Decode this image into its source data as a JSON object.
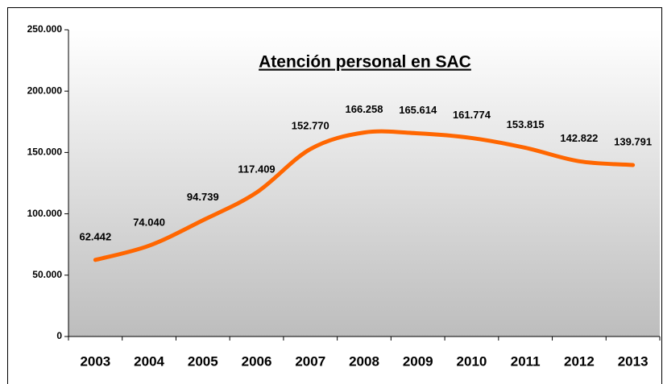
{
  "chart_data": {
    "type": "line",
    "title": "Atención personal en SAC",
    "categories": [
      "2003",
      "2004",
      "2005",
      "2006",
      "2007",
      "2008",
      "2009",
      "2010",
      "2011",
      "2012",
      "2013"
    ],
    "values": [
      62442,
      74040,
      94739,
      117409,
      152770,
      166258,
      165614,
      161774,
      153815,
      142822,
      139791
    ],
    "value_labels": [
      "62.442",
      "74.040",
      "94.739",
      "117.409",
      "152.770",
      "166.258",
      "165.614",
      "161.774",
      "153.815",
      "142.822",
      "139.791"
    ],
    "color": "#ff6600",
    "smooth": true,
    "ylim": [
      0,
      250000
    ],
    "yticks": [
      0,
      {
        "value": 50000,
        "label": "50.000"
      },
      {
        "value": 100000,
        "label": "100.000"
      },
      {
        "value": 150000,
        "label": "150.000"
      },
      {
        "value": 200000,
        "label": "200.000"
      },
      {
        "value": 250000,
        "label": "250.000"
      }
    ]
  }
}
